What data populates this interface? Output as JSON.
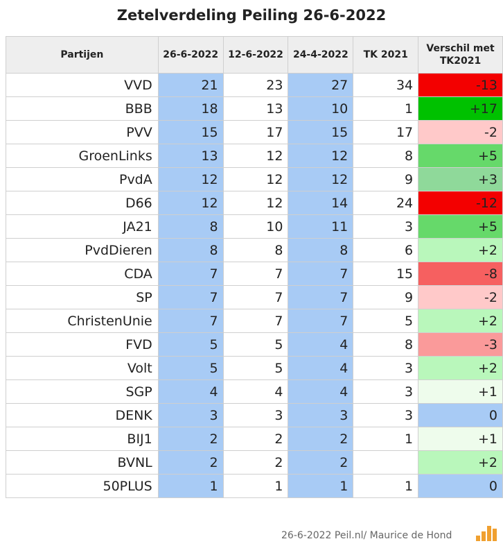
{
  "title": "Zetelverdeling Peiling 26-6-2022",
  "headers": [
    "Partijen",
    "26-6-2022",
    "12-6-2022",
    "24-4-2022",
    "TK 2021",
    "Verschil met",
    "TK2021"
  ],
  "rows": [
    {
      "party": "VVD",
      "p1": "21",
      "p2": "23",
      "p3": "27",
      "tk": "34",
      "diff": "-13",
      "diff_color": "#f30000"
    },
    {
      "party": "BBB",
      "p1": "18",
      "p2": "13",
      "p3": "10",
      "tk": "1",
      "diff": "+17",
      "diff_color": "#00c100"
    },
    {
      "party": "PVV",
      "p1": "15",
      "p2": "17",
      "p3": "15",
      "tk": "17",
      "diff": "-2",
      "diff_color": "#ffc9c9"
    },
    {
      "party": "GroenLinks",
      "p1": "13",
      "p2": "12",
      "p3": "12",
      "tk": "8",
      "diff": "+5",
      "diff_color": "#66d96a"
    },
    {
      "party": "PvdA",
      "p1": "12",
      "p2": "12",
      "p3": "12",
      "tk": "9",
      "diff": "+3",
      "diff_color": "#8fd99a"
    },
    {
      "party": "D66",
      "p1": "12",
      "p2": "12",
      "p3": "14",
      "tk": "24",
      "diff": "-12",
      "diff_color": "#f30000"
    },
    {
      "party": "JA21",
      "p1": "8",
      "p2": "10",
      "p3": "11",
      "tk": "3",
      "diff": "+5",
      "diff_color": "#66d96a"
    },
    {
      "party": "PvdDieren",
      "p1": "8",
      "p2": "8",
      "p3": "8",
      "tk": "6",
      "diff": "+2",
      "diff_color": "#b9f7bb"
    },
    {
      "party": "CDA",
      "p1": "7",
      "p2": "7",
      "p3": "7",
      "tk": "15",
      "diff": "-8",
      "diff_color": "#f66060"
    },
    {
      "party": "SP",
      "p1": "7",
      "p2": "7",
      "p3": "7",
      "tk": "9",
      "diff": "-2",
      "diff_color": "#ffc9c9"
    },
    {
      "party": "ChristenUnie",
      "p1": "7",
      "p2": "7",
      "p3": "7",
      "tk": "5",
      "diff": "+2",
      "diff_color": "#b9f7bb"
    },
    {
      "party": "FVD",
      "p1": "5",
      "p2": "5",
      "p3": "4",
      "tk": "8",
      "diff": "-3",
      "diff_color": "#fa9a9a"
    },
    {
      "party": "Volt",
      "p1": "5",
      "p2": "5",
      "p3": "4",
      "tk": "3",
      "diff": "+2",
      "diff_color": "#b9f7bb"
    },
    {
      "party": "SGP",
      "p1": "4",
      "p2": "4",
      "p3": "4",
      "tk": "3",
      "diff": "+1",
      "diff_color": "#eefcec"
    },
    {
      "party": "DENK",
      "p1": "3",
      "p2": "3",
      "p3": "3",
      "tk": "3",
      "diff": "0",
      "diff_color": "#a8cbf5"
    },
    {
      "party": "BIJ1",
      "p1": "2",
      "p2": "2",
      "p3": "2",
      "tk": "1",
      "diff": "+1",
      "diff_color": "#eefcec"
    },
    {
      "party": "BVNL",
      "p1": "2",
      "p2": "2",
      "p3": "2",
      "tk": "",
      "diff": "+2",
      "diff_color": "#b9f7bb"
    },
    {
      "party": "50PLUS",
      "p1": "1",
      "p2": "1",
      "p3": "1",
      "tk": "1",
      "diff": "0",
      "diff_color": "#a8cbf5"
    }
  ],
  "footer": "26-6-2022 Peil.nl/ Maurice de Hond",
  "logo_text": "Peil.nl",
  "colors": {
    "blue_column": "#a8cbf5",
    "header_bg": "#eeeeee",
    "logo": "#f0a030"
  }
}
